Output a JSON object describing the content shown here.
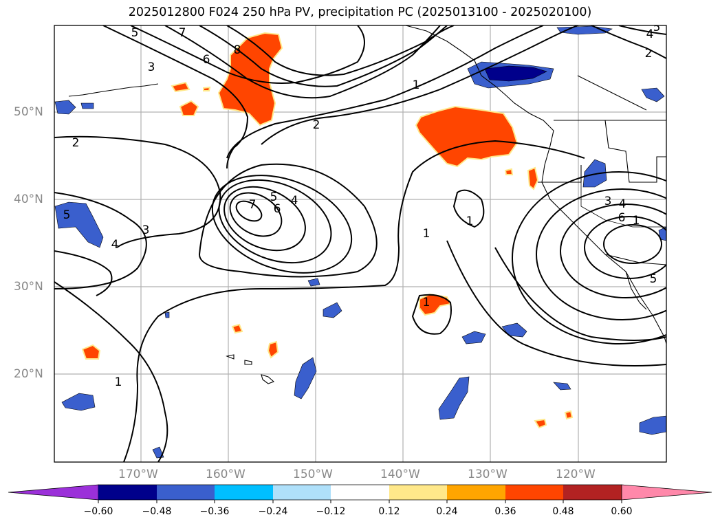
{
  "title": "2025012800 F024 250 hPa PV, precipitation PC (2025013100 - 2025020100)",
  "map": {
    "lat_labels": [
      "50°N",
      "40°N",
      "30°N",
      "20°N"
    ],
    "lon_labels": [
      "170°W",
      "160°W",
      "150°W",
      "140°W",
      "130°W",
      "120°W"
    ],
    "contour_labels": [
      "5",
      "7",
      "3",
      "6",
      "8",
      "2",
      "1",
      "2",
      "5",
      "4",
      "6",
      "7",
      "3",
      "4",
      "5",
      "1",
      "1",
      "1",
      "3",
      "4",
      "6",
      "1",
      "5",
      "2",
      "4",
      "5"
    ]
  },
  "colorbar": {
    "ticks": [
      "−0.60",
      "−0.48",
      "−0.36",
      "−0.24",
      "−0.12",
      "0.12",
      "0.24",
      "0.36",
      "0.48",
      "0.60"
    ],
    "colors": [
      "#9b30d9",
      "#00008b",
      "#3a5fcd",
      "#00bfff",
      "#afe0fa",
      "#ffffff",
      "#ffe88a",
      "#ffa500",
      "#ff4500",
      "#b22222",
      "#ff88aa"
    ]
  }
}
